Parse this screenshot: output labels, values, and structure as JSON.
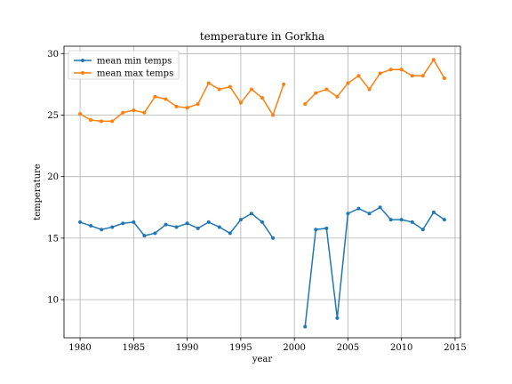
{
  "chart_data": {
    "type": "line",
    "title": "temperature in Gorkha",
    "xlabel": "year",
    "ylabel": "temperature",
    "xlim": [
      1978.5,
      2015.5
    ],
    "ylim": [
      6.9,
      30.6
    ],
    "xticks": [
      1980,
      1985,
      1990,
      1995,
      2000,
      2005,
      2010,
      2015
    ],
    "yticks": [
      10,
      15,
      20,
      25,
      30
    ],
    "grid": true,
    "legend_position": "upper-left",
    "x": [
      1980,
      1981,
      1982,
      1983,
      1984,
      1985,
      1986,
      1987,
      1988,
      1989,
      1990,
      1991,
      1992,
      1993,
      1994,
      1995,
      1996,
      1997,
      1998,
      1999,
      2000,
      2001,
      2002,
      2003,
      2004,
      2005,
      2006,
      2007,
      2008,
      2009,
      2010,
      2011,
      2012,
      2013,
      2014
    ],
    "series": [
      {
        "name": "mean min temps",
        "color": "#1f77b4",
        "values": [
          16.3,
          16.0,
          15.7,
          15.9,
          16.2,
          16.3,
          15.2,
          15.4,
          16.1,
          15.9,
          16.2,
          15.8,
          16.3,
          15.9,
          15.4,
          16.5,
          17.0,
          16.3,
          15.0,
          null,
          null,
          7.8,
          15.7,
          15.8,
          8.5,
          17.0,
          17.4,
          17.0,
          17.5,
          16.5,
          16.5,
          16.3,
          15.7,
          17.1,
          16.5
        ]
      },
      {
        "name": "mean max temps",
        "color": "#ff7f0e",
        "values": [
          25.1,
          24.6,
          24.5,
          24.5,
          25.2,
          25.4,
          25.2,
          26.5,
          26.3,
          25.7,
          25.6,
          25.9,
          27.6,
          27.1,
          27.3,
          26.0,
          27.1,
          26.4,
          25.0,
          27.5,
          null,
          25.9,
          26.8,
          27.1,
          26.5,
          27.6,
          28.2,
          27.1,
          28.4,
          28.7,
          28.7,
          28.2,
          28.2,
          29.5,
          28.0
        ]
      }
    ]
  }
}
